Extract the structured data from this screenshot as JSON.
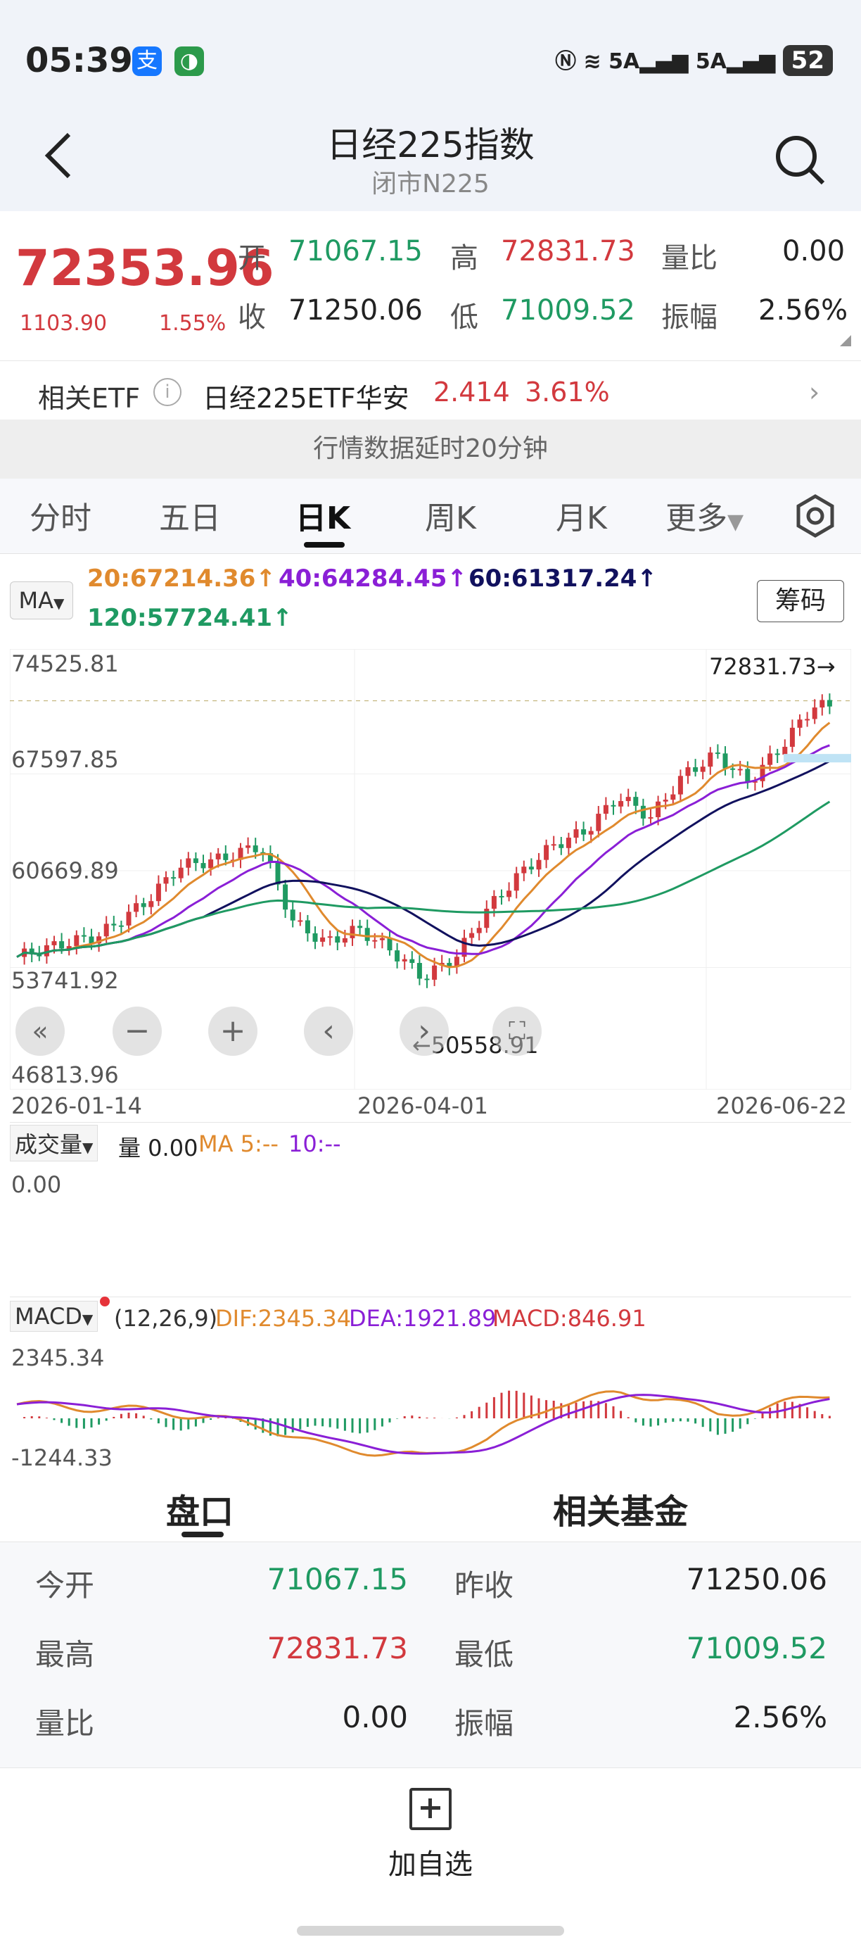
{
  "status_bar": {
    "time": "05:39",
    "app_icon_1": "支",
    "signal_1": "5A",
    "signal_2": "5A",
    "battery": "52"
  },
  "header": {
    "title": "日经225指数",
    "subtitle": "闭市N225"
  },
  "quote": {
    "price": "72353.96",
    "change": "1103.90",
    "change_pct": "1.55%",
    "open_label": "开",
    "open": "71067.15",
    "high_label": "高",
    "high": "72831.73",
    "ratio_label": "量比",
    "ratio": "0.00",
    "close_label": "收",
    "close": "71250.06",
    "low_label": "低",
    "low": "71009.52",
    "amp_label": "振幅",
    "amp": "2.56%"
  },
  "etf": {
    "label": "相关ETF",
    "name": "日经225ETF华安",
    "price": "2.414",
    "pct": "3.61%"
  },
  "delay_notice": "行情数据延时20分钟",
  "tabs": [
    "分时",
    "五日",
    "日K",
    "周K",
    "月K",
    "更多"
  ],
  "ma_legend": {
    "button": "MA",
    "ma20": "20:67214.36↑",
    "ma40": "40:64284.45↑",
    "ma60": "60:61317.24↑",
    "ma120": "120:57724.41↑",
    "chip_button": "筹码"
  },
  "chart_data": {
    "type": "candlestick",
    "y_ticks": [
      "74525.81",
      "67597.85",
      "60669.89",
      "53741.92",
      "46813.96"
    ],
    "ylim": [
      46813.96,
      74525.81
    ],
    "x_ticks": [
      "2026-01-14",
      "2026-04-01",
      "2026-06-22"
    ],
    "high_marker": "72831.73→",
    "low_marker": "←50558.91",
    "high_value": 72831.73,
    "low_value": 50558.91,
    "colors": {
      "up": "#d2393e",
      "down": "#1f9a62",
      "ma20": "#e08a2e",
      "ma40": "#8a1fd6",
      "ma60": "#11115e",
      "ma120": "#1f9a62"
    }
  },
  "volume": {
    "button": "成交量",
    "vol": "量 0.00",
    "ma5": "MA 5:--",
    "ma10": "10:--",
    "axis": "0.00"
  },
  "macd": {
    "button": "MACD",
    "params": "(12,26,9)",
    "dif": "DIF:2345.34",
    "dea": "DEA:1921.89",
    "macd": "MACD:846.91",
    "axis_top": "2345.34",
    "axis_bottom": "-1244.33"
  },
  "section_tabs": [
    "盘口",
    "相关基金"
  ],
  "stats": {
    "today_open_label": "今开",
    "today_open": "71067.15",
    "prev_close_label": "昨收",
    "prev_close": "71250.06",
    "high_label": "最高",
    "high": "72831.73",
    "low_label": "最低",
    "low": "71009.52",
    "ratio_label": "量比",
    "ratio": "0.00",
    "amp_label": "振幅",
    "amp": "2.56%"
  },
  "add_watchlist": "加自选"
}
